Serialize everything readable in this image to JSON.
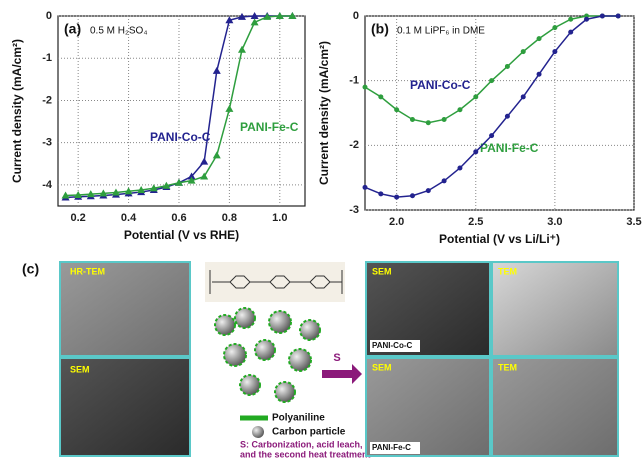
{
  "chart_data": [
    {
      "type": "line",
      "panel": "(a)",
      "annotation": "0.5 M H₂SO₄",
      "x_label": "Potential (V vs RHE)",
      "y_label": "Current density (mA/cm²)",
      "xlim": [
        0.12,
        1.1
      ],
      "ylim": [
        -4.5,
        0
      ],
      "xticks": [
        0.2,
        0.4,
        0.6,
        0.8,
        {
          "value": 1.0,
          "label": "1.0"
        }
      ],
      "yticks": [
        0,
        -1,
        -2,
        -3,
        -4
      ],
      "grid": true,
      "marker": "triangle",
      "x": [
        0.15,
        0.2,
        0.25,
        0.3,
        0.35,
        0.4,
        0.45,
        0.5,
        0.55,
        0.6,
        0.65,
        0.7,
        0.75,
        0.8,
        0.85,
        0.9,
        0.95,
        1.0,
        1.05
      ],
      "series": [
        {
          "name": "PANI-Co-C",
          "color": "#23238f",
          "values": [
            -4.3,
            -4.28,
            -4.27,
            -4.25,
            -4.23,
            -4.2,
            -4.17,
            -4.12,
            -4.05,
            -3.95,
            -3.8,
            -3.45,
            -1.3,
            -0.1,
            -0.02,
            0,
            0,
            0,
            0
          ]
        },
        {
          "name": "PANI-Fe-C",
          "color": "#2e9e3e",
          "values": [
            -4.25,
            -4.24,
            -4.22,
            -4.2,
            -4.18,
            -4.15,
            -4.12,
            -4.08,
            -4.02,
            -3.95,
            -3.9,
            -3.8,
            -3.3,
            -2.2,
            -0.8,
            -0.15,
            -0.02,
            0,
            0
          ]
        }
      ]
    },
    {
      "type": "line",
      "panel": "(b)",
      "annotation": "0.1 M LiPF₆ in DME",
      "x_label": "Potential (V vs Li/Li⁺)",
      "y_label": "Current density (mA/cm²)",
      "xlim": [
        1.8,
        3.5
      ],
      "ylim": [
        -3,
        0
      ],
      "xticks": [
        {
          "value": 2.0,
          "label": "2.0"
        },
        2.5,
        {
          "value": 3.0,
          "label": "3.0"
        },
        3.5
      ],
      "yticks": [
        0,
        -1,
        -2,
        -3
      ],
      "grid": true,
      "marker": "circle",
      "x": [
        1.8,
        1.9,
        2.0,
        2.1,
        2.2,
        2.3,
        2.4,
        2.5,
        2.6,
        2.7,
        2.8,
        2.9,
        3.0,
        3.1,
        3.2,
        3.3,
        3.4
      ],
      "series": [
        {
          "name": "PANI-Fe-C",
          "color": "#2e9e3e",
          "values": [
            -1.1,
            -1.25,
            -1.45,
            -1.6,
            -1.65,
            -1.6,
            -1.45,
            -1.25,
            -1.0,
            -0.78,
            -0.55,
            -0.35,
            -0.18,
            -0.05,
            0,
            0,
            0
          ]
        },
        {
          "name": "PANI-Co-C",
          "color": "#23238f",
          "values": [
            -2.65,
            -2.75,
            -2.8,
            -2.78,
            -2.7,
            -2.55,
            -2.35,
            -2.1,
            -1.85,
            -1.55,
            -1.25,
            -0.9,
            -0.55,
            -0.25,
            -0.05,
            0,
            0
          ]
        }
      ]
    }
  ],
  "panel_c": {
    "label": "(c)",
    "hrtem": "HR-TEM",
    "sem_left": "SEM",
    "arrow": "S",
    "legend_polymer": "Polyaniline",
    "legend_carbon": "Carbon particle",
    "note_line1": "S: Carbonization, acid leach,",
    "note_line2": "and the second heat treatment",
    "sem_co": "SEM",
    "tem_co": "TEM",
    "sem_fe": "SEM",
    "tem_fe": "TEM",
    "tag_co": "PANI-Co-C",
    "tag_fe": "PANI-Fe-C"
  }
}
